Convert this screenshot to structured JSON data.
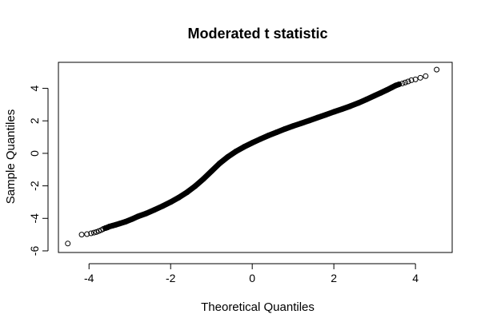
{
  "chart_data": {
    "type": "scatter",
    "title": "Moderated t statistic",
    "xlabel": "Theoretical Quantiles",
    "ylabel": "Sample Quantiles",
    "xlim": [
      -4.75,
      4.9
    ],
    "ylim": [
      -6.1,
      5.6
    ],
    "xticks": [
      -4,
      -2,
      0,
      2,
      4
    ],
    "yticks": [
      -6,
      -4,
      -2,
      0,
      2,
      4
    ],
    "grid": false,
    "legend": "none",
    "marker": "open-circle",
    "point_color": "#000000",
    "series": [
      {
        "x": [
          -4.52,
          -4.18,
          -4.05,
          -3.95,
          -3.88,
          -3.82,
          -3.76,
          -3.7,
          -3.65,
          -3.6,
          -3.55,
          -3.5,
          -3.42,
          -3.35,
          -3.25,
          -3.1,
          -2.95,
          -2.8,
          -2.6,
          -2.4,
          -2.2,
          -2.0,
          -1.8,
          -1.6,
          -1.4,
          -1.2,
          -1.0,
          -0.8,
          -0.6,
          -0.4,
          -0.2,
          0.0,
          0.2,
          0.4,
          0.6,
          0.8,
          1.0,
          1.2,
          1.4,
          1.6,
          1.8,
          2.0,
          2.2,
          2.4,
          2.6,
          2.8,
          3.0,
          3.15,
          3.3,
          3.42,
          3.52,
          3.6,
          3.68,
          3.75,
          3.82,
          3.9,
          4.0,
          4.12,
          4.25,
          4.52
        ],
        "y": [
          -5.55,
          -5.0,
          -4.97,
          -4.92,
          -4.88,
          -4.84,
          -4.78,
          -4.72,
          -4.65,
          -4.6,
          -4.56,
          -4.5,
          -4.45,
          -4.4,
          -4.32,
          -4.2,
          -4.05,
          -3.88,
          -3.7,
          -3.48,
          -3.25,
          -3.0,
          -2.72,
          -2.4,
          -2.02,
          -1.58,
          -1.1,
          -0.62,
          -0.22,
          0.12,
          0.4,
          0.65,
          0.88,
          1.1,
          1.3,
          1.5,
          1.68,
          1.85,
          2.02,
          2.2,
          2.37,
          2.55,
          2.72,
          2.9,
          3.1,
          3.32,
          3.55,
          3.72,
          3.9,
          4.05,
          4.18,
          4.25,
          4.3,
          4.36,
          4.42,
          4.5,
          4.55,
          4.65,
          4.75,
          5.15
        ]
      }
    ]
  }
}
